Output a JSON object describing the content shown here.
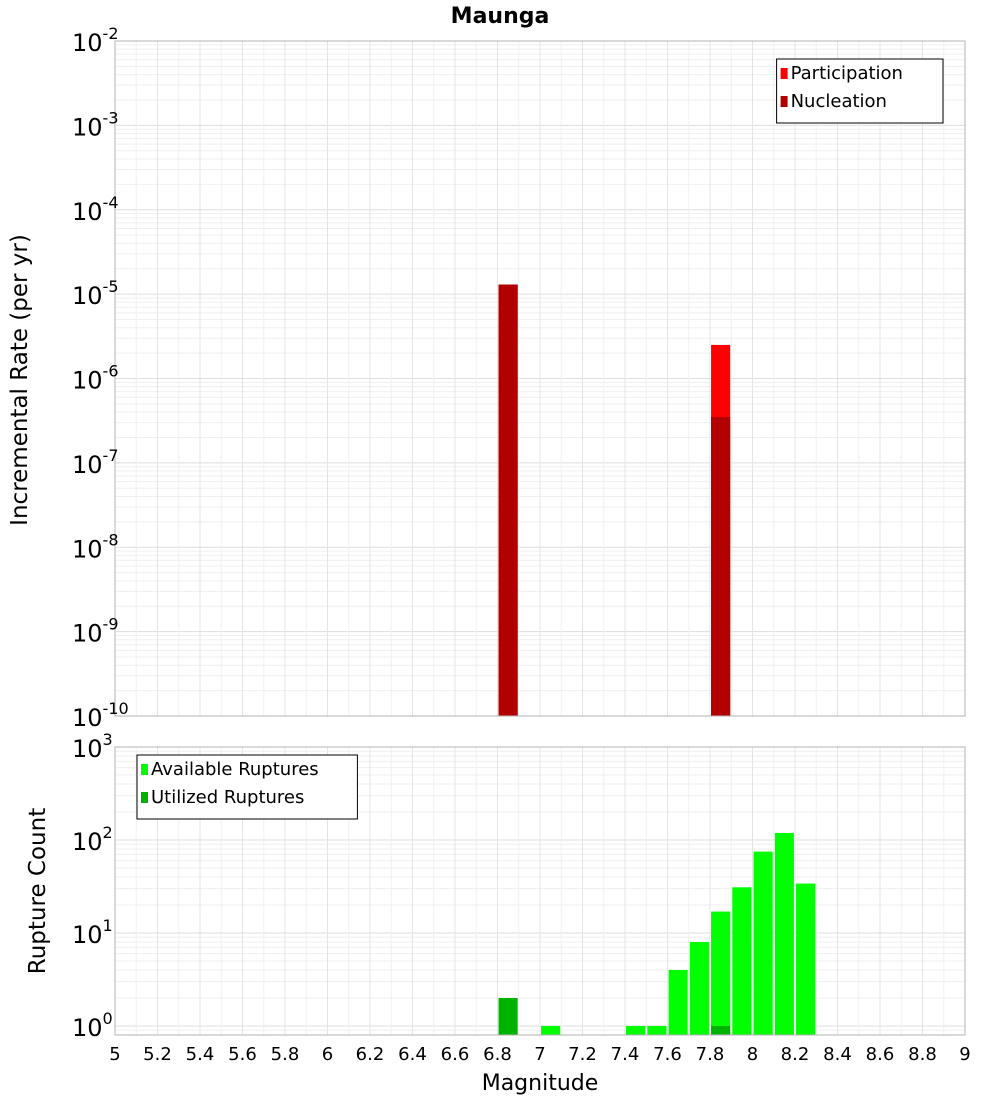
{
  "title": "Maunga",
  "chart_data": [
    {
      "type": "bar",
      "title": "Maunga",
      "xlabel": "",
      "ylabel": "Incremental Rate (per yr)",
      "yscale": "log",
      "ylim": [
        1e-10,
        0.01
      ],
      "xlim": [
        5,
        9
      ],
      "grid": true,
      "y_tick_labels": [
        {
          "base": "10",
          "exp": "-10"
        },
        {
          "base": "10",
          "exp": "-9"
        },
        {
          "base": "10",
          "exp": "-8"
        },
        {
          "base": "10",
          "exp": "-7"
        },
        {
          "base": "10",
          "exp": "-6"
        },
        {
          "base": "10",
          "exp": "-5"
        },
        {
          "base": "10",
          "exp": "-4"
        },
        {
          "base": "10",
          "exp": "-3"
        },
        {
          "base": "10",
          "exp": "-2"
        }
      ],
      "legend_position": "top-right",
      "legend": [
        "Participation",
        "Nucleation"
      ],
      "bar_width": 0.09,
      "series": [
        {
          "name": "Participation",
          "color": "#ff0000",
          "x": [
            6.85,
            7.85
          ],
          "values": [
            1.3e-05,
            2.5e-06
          ]
        },
        {
          "name": "Nucleation",
          "color": "#b20000",
          "x": [
            6.85,
            7.85
          ],
          "values": [
            1.3e-05,
            3.5e-07
          ]
        }
      ]
    },
    {
      "type": "bar",
      "xlabel": "Magnitude",
      "ylabel": "Rupture Count",
      "yscale": "log",
      "ylim": [
        0.8,
        1000
      ],
      "xlim": [
        5,
        9
      ],
      "grid": true,
      "x_tick_labels": [
        "5",
        "5.2",
        "5.4",
        "5.6",
        "5.8",
        "6",
        "6.2",
        "6.4",
        "6.6",
        "6.8",
        "7",
        "7.2",
        "7.4",
        "7.6",
        "7.8",
        "8",
        "8.2",
        "8.4",
        "8.6",
        "8.8",
        "9"
      ],
      "y_tick_labels": [
        {
          "base": "10",
          "exp": "0"
        },
        {
          "base": "10",
          "exp": "1"
        },
        {
          "base": "10",
          "exp": "2"
        },
        {
          "base": "10",
          "exp": "3"
        }
      ],
      "legend_position": "top-left",
      "legend": [
        "Available Ruptures",
        "Utilized Ruptures"
      ],
      "bar_width": 0.09,
      "series": [
        {
          "name": "Available Ruptures",
          "color": "#00ff00",
          "x": [
            7.05,
            7.45,
            7.55,
            7.65,
            7.75,
            7.85,
            7.95,
            8.05,
            8.15,
            8.25
          ],
          "values": [
            1,
            1,
            1,
            4,
            8,
            17,
            31,
            75,
            119,
            34
          ]
        },
        {
          "name": "Utilized Ruptures",
          "color": "#00b200",
          "x": [
            6.85,
            7.85
          ],
          "values": [
            2,
            1
          ]
        }
      ]
    }
  ]
}
